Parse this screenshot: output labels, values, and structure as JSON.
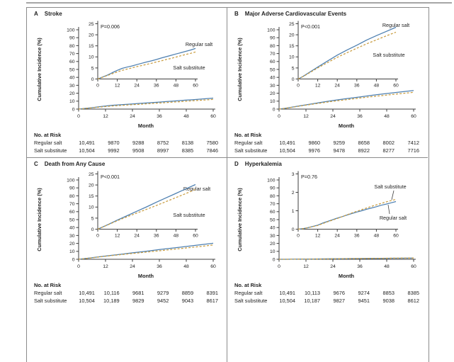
{
  "shared": {
    "ylabel": "Cumulative Incidence (%)",
    "xlabel": "Month",
    "risk_header": "No. at Risk",
    "colors": {
      "regular_salt": "#4d7fb0",
      "salt_substitute": "#c99d42",
      "axis": "#3f3f3f",
      "panel_border": "#8c8c8c",
      "top_rule": "#a6a6a6"
    }
  },
  "chart_data": [
    {
      "type": "line",
      "letter": "A",
      "title": "Stroke",
      "p_value": "P=0.006",
      "xlabel": "Month",
      "ylabel": "Cumulative Incidence (%)",
      "main_axis": {
        "ylim": [
          0,
          100
        ],
        "yticks": [
          0,
          10,
          20,
          30,
          40,
          50,
          60,
          70,
          80,
          90,
          100
        ],
        "xticks": [
          0,
          12,
          24,
          36,
          48,
          60
        ]
      },
      "inset_axis": {
        "ylim": [
          0,
          25
        ],
        "yticks": [
          0,
          5,
          10,
          15,
          20,
          25
        ],
        "xticks": [
          0,
          12,
          24,
          36,
          48,
          60
        ]
      },
      "series": [
        {
          "name": "Regular salt",
          "line": "solid",
          "color_key": "regular_salt",
          "x": [
            0,
            3,
            6,
            9,
            12,
            15,
            18,
            21,
            24,
            27,
            30,
            33,
            36,
            39,
            42,
            45,
            48,
            51,
            54,
            57,
            60
          ],
          "y": [
            0,
            0.9,
            1.8,
            2.9,
            3.9,
            4.8,
            5.4,
            5.9,
            6.5,
            7.1,
            7.7,
            8.2,
            8.8,
            9.5,
            10.1,
            10.7,
            11.3,
            11.9,
            12.5,
            13.1,
            13.8
          ]
        },
        {
          "name": "Salt substitute",
          "line": "dashed",
          "color_key": "salt_substitute",
          "x": [
            0,
            3,
            6,
            9,
            12,
            15,
            18,
            21,
            24,
            27,
            30,
            33,
            36,
            39,
            42,
            45,
            48,
            51,
            54,
            57,
            60
          ],
          "y": [
            0,
            0.8,
            1.6,
            2.4,
            3.2,
            3.9,
            4.5,
            5.0,
            5.6,
            6.1,
            6.6,
            7.1,
            7.7,
            8.2,
            8.8,
            9.3,
            9.9,
            10.5,
            11.1,
            11.6,
            12.2
          ]
        }
      ],
      "risk_table": {
        "header": "No. at Risk",
        "rows": [
          {
            "label": "Regular salt",
            "values": [
              "10,491",
              "9870",
              "9288",
              "8752",
              "8138",
              "7580"
            ]
          },
          {
            "label": "Salt substitute",
            "values": [
              "10,504",
              "9992",
              "9508",
              "8997",
              "8385",
              "7846"
            ]
          }
        ]
      }
    },
    {
      "type": "line",
      "letter": "B",
      "title": "Major Adverse Cardiovascular Events",
      "p_value": "P<0.001",
      "xlabel": "Month",
      "ylabel": "Cumulative Incidence (%)",
      "main_axis": {
        "ylim": [
          0,
          100
        ],
        "yticks": [
          0,
          10,
          20,
          30,
          40,
          50,
          60,
          70,
          80,
          90,
          100
        ],
        "xticks": [
          0,
          12,
          24,
          36,
          48,
          60
        ]
      },
      "inset_axis": {
        "ylim": [
          0,
          25
        ],
        "yticks": [
          0,
          5,
          10,
          15,
          20,
          25
        ],
        "xticks": [
          0,
          12,
          24,
          36,
          48,
          60
        ]
      },
      "series": [
        {
          "name": "Regular salt",
          "line": "solid",
          "color_key": "regular_salt",
          "x": [
            0,
            3,
            6,
            9,
            12,
            18,
            24,
            30,
            36,
            42,
            48,
            54,
            60
          ],
          "y": [
            0,
            1.2,
            2.6,
            4.0,
            5.4,
            8.1,
            10.8,
            13.1,
            15.3,
            17.6,
            19.6,
            21.5,
            23.4
          ]
        },
        {
          "name": "Salt substitute",
          "line": "dashed",
          "color_key": "salt_substitute",
          "x": [
            0,
            3,
            6,
            9,
            12,
            18,
            24,
            30,
            36,
            42,
            48,
            54,
            60
          ],
          "y": [
            0,
            1.1,
            2.4,
            3.7,
            5.0,
            7.4,
            9.8,
            11.9,
            13.9,
            15.9,
            17.7,
            19.5,
            21.2
          ]
        }
      ],
      "risk_table": {
        "header": "No. at Risk",
        "rows": [
          {
            "label": "Regular salt",
            "values": [
              "10,491",
              "9860",
              "9259",
              "8658",
              "8002",
              "7412"
            ]
          },
          {
            "label": "Salt substitute",
            "values": [
              "10,504",
              "9976",
              "9478",
              "8922",
              "8277",
              "7716"
            ]
          }
        ]
      }
    },
    {
      "type": "line",
      "letter": "C",
      "title": "Death from Any Cause",
      "p_value": "P<0.001",
      "xlabel": "Month",
      "ylabel": "Cumulative Incidence (%)",
      "main_axis": {
        "ylim": [
          0,
          100
        ],
        "yticks": [
          0,
          10,
          20,
          30,
          40,
          50,
          60,
          70,
          80,
          90,
          100
        ],
        "xticks": [
          0,
          12,
          24,
          36,
          48,
          60
        ]
      },
      "inset_axis": {
        "ylim": [
          0,
          25
        ],
        "yticks": [
          0,
          5,
          10,
          15,
          20,
          25
        ],
        "xticks": [
          0,
          12,
          24,
          36,
          48,
          60
        ]
      },
      "series": [
        {
          "name": "Regular salt",
          "line": "solid",
          "color_key": "regular_salt",
          "x": [
            0,
            6,
            12,
            18,
            24,
            30,
            36,
            42,
            48,
            54,
            60
          ],
          "y": [
            0,
            2.0,
            4.1,
            6.1,
            8.1,
            10.1,
            12.2,
            14.2,
            16.2,
            18.2,
            20.2
          ]
        },
        {
          "name": "Salt substitute",
          "line": "dashed",
          "color_key": "salt_substitute",
          "x": [
            0,
            6,
            12,
            18,
            24,
            30,
            36,
            42,
            48,
            54,
            60
          ],
          "y": [
            0,
            1.9,
            3.8,
            5.6,
            7.3,
            9.0,
            10.7,
            12.5,
            14.3,
            16.1,
            18.0
          ]
        }
      ],
      "risk_table": {
        "header": "No. at Risk",
        "rows": [
          {
            "label": "Regular salt",
            "values": [
              "10,491",
              "10,116",
              "9681",
              "9279",
              "8859",
              "8391"
            ]
          },
          {
            "label": "Salt substitute",
            "values": [
              "10,504",
              "10,189",
              "9829",
              "9452",
              "9043",
              "8617"
            ]
          }
        ]
      }
    },
    {
      "type": "line",
      "letter": "D",
      "title": "Hyperkalemia",
      "p_value": "P=0.76",
      "xlabel": "Month",
      "ylabel": "Cumulative Incidence (%)",
      "main_axis": {
        "ylim": [
          0,
          100
        ],
        "yticks": [
          0,
          10,
          20,
          30,
          40,
          50,
          60,
          70,
          80,
          90,
          100
        ],
        "xticks": [
          0,
          12,
          24,
          36,
          48,
          60
        ]
      },
      "inset_axis": {
        "ylim": [
          0,
          3
        ],
        "yticks": [
          0,
          1,
          2,
          3
        ],
        "xticks": [
          0,
          12,
          24,
          36,
          48,
          60
        ]
      },
      "series": [
        {
          "name": "Regular salt",
          "line": "solid",
          "color_key": "regular_salt",
          "x": [
            0,
            3,
            6,
            9,
            12,
            15,
            18,
            21,
            24,
            27,
            30,
            33,
            36,
            39,
            42,
            45,
            48,
            51,
            54,
            57,
            60
          ],
          "y": [
            0,
            0.03,
            0.08,
            0.15,
            0.22,
            0.33,
            0.42,
            0.51,
            0.6,
            0.68,
            0.77,
            0.85,
            0.93,
            1.0,
            1.08,
            1.15,
            1.22,
            1.3,
            1.36,
            1.43,
            1.5
          ]
        },
        {
          "name": "Salt substitute",
          "line": "dashed",
          "color_key": "salt_substitute",
          "x": [
            0,
            3,
            6,
            9,
            12,
            15,
            18,
            21,
            24,
            27,
            30,
            33,
            36,
            39,
            42,
            45,
            48,
            51,
            54,
            57,
            60
          ],
          "y": [
            0,
            0.03,
            0.08,
            0.14,
            0.2,
            0.3,
            0.4,
            0.49,
            0.58,
            0.68,
            0.78,
            0.88,
            0.97,
            1.06,
            1.15,
            1.24,
            1.32,
            1.4,
            1.48,
            1.55,
            1.62
          ]
        }
      ],
      "risk_table": {
        "header": "No. at Risk",
        "rows": [
          {
            "label": "Regular salt",
            "values": [
              "10,491",
              "10,113",
              "9676",
              "9274",
              "8853",
              "8385"
            ]
          },
          {
            "label": "Salt substitute",
            "values": [
              "10,504",
              "10,187",
              "9827",
              "9451",
              "9038",
              "8612"
            ]
          }
        ]
      }
    }
  ]
}
